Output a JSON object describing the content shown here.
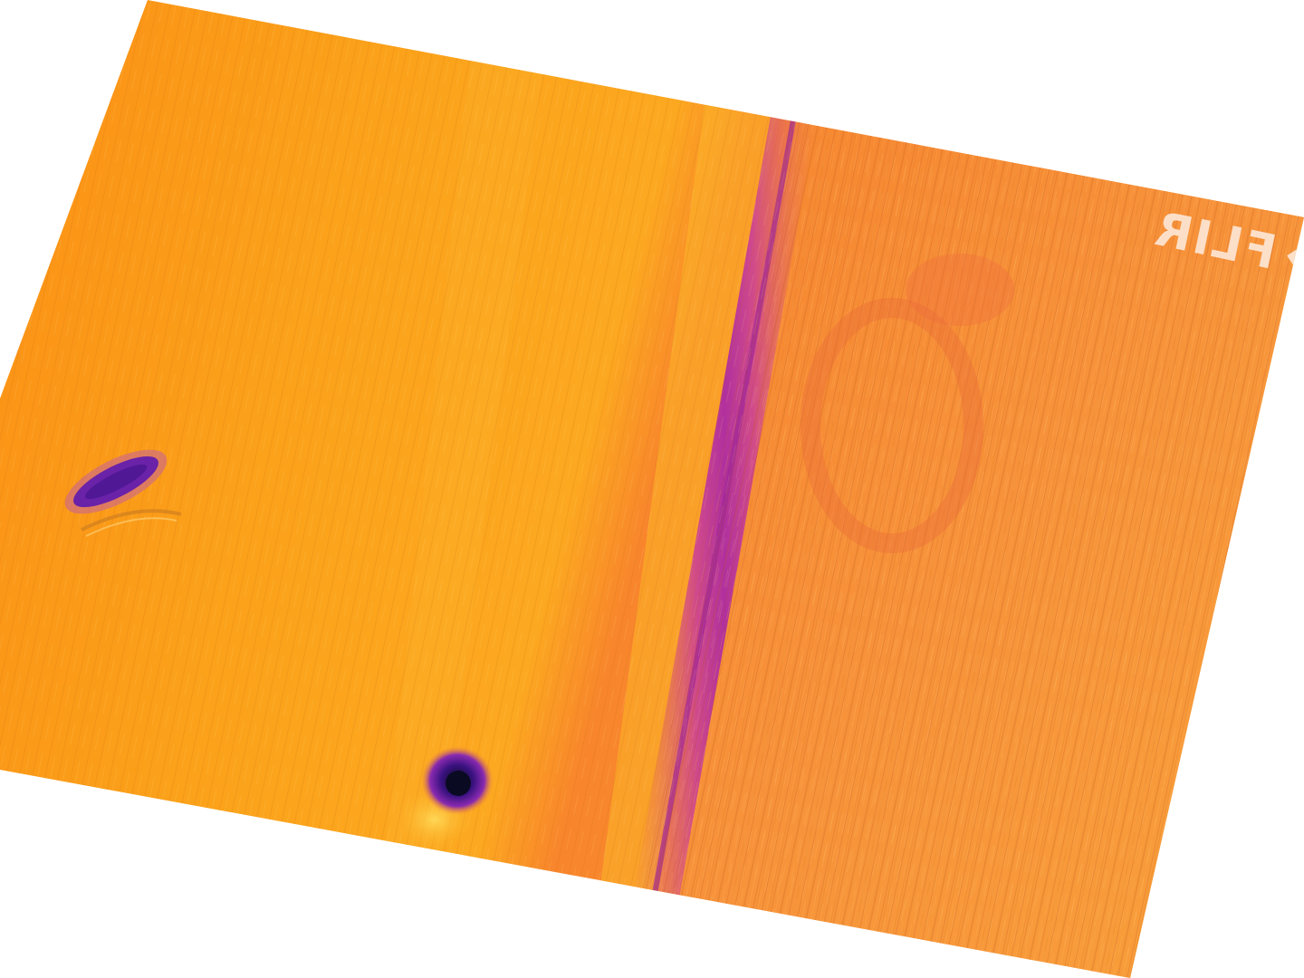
{
  "image": {
    "kind": "aerial thermal image",
    "palette": "ironbow",
    "colors": {
      "background": "#ffffff",
      "field_warm": "#fb9a14",
      "field_hot": "#fcc020",
      "field_pinkish": "#f48040",
      "ditch": "#b8349a",
      "cold_object": "#5a1a9e",
      "cold_core": "#1a0a40"
    }
  },
  "logo": {
    "text": "FLIR",
    "mirrored": true
  },
  "features": [
    {
      "name": "cold-vehicle-blob",
      "description_color": "purple"
    },
    {
      "name": "cold-spot",
      "description_color": "dark purple"
    },
    {
      "name": "ditch-line",
      "description_color": "magenta"
    }
  ]
}
